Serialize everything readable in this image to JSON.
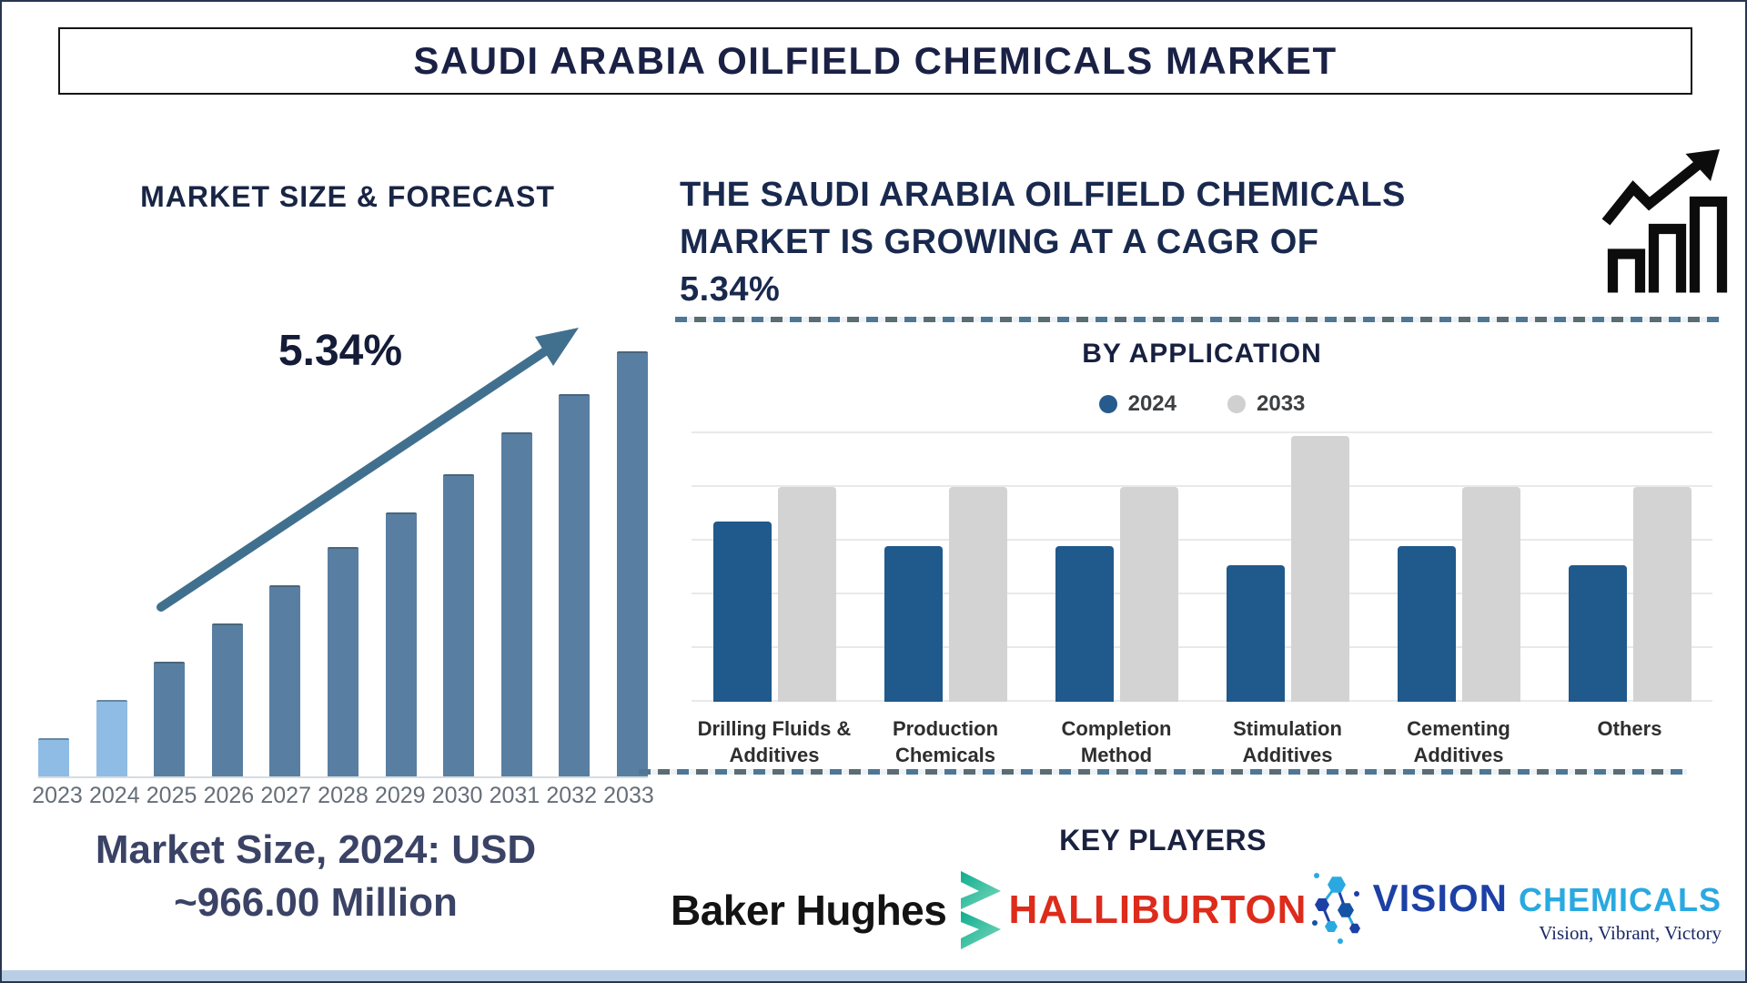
{
  "title": "SAUDI ARABIA OILFIELD CHEMICALS MARKET",
  "left": {
    "heading": "MARKET SIZE & FORECAST",
    "cagr_label": "5.34%",
    "market_size_line1": "Market Size, 2024: USD",
    "market_size_line2": "~966.00 Million"
  },
  "right": {
    "cagr_lines": [
      "THE SAUDI ARABIA OILFIELD CHEMICALS",
      "MARKET IS GROWING AT A CAGR OF",
      "5.34%"
    ],
    "by_application_heading": "BY APPLICATION",
    "legend": [
      {
        "label": "2024",
        "color": "#275b8e"
      },
      {
        "label": "2033",
        "color": "#d0d0d0"
      }
    ],
    "key_players_heading": "KEY PLAYERS",
    "players": {
      "baker_hughes": "Baker Hughes",
      "halliburton": "HALLIBURTON",
      "vision_word1": "VISION",
      "vision_word2": "CHEMICALS",
      "vision_tagline": "Vision, Vibrant, Victory"
    }
  },
  "colors": {
    "navy_text": "#1A2145",
    "forecast_bar_light": "#8FBCE4",
    "forecast_bar_dark": "#587FA2",
    "trend_arrow": "#41708F",
    "app_bar_2024": "#20598C",
    "app_bar_2033": "#D3D3D3",
    "halliburton_red": "#DD2B1C",
    "baker_hughes_black": "#131313",
    "baker_hughes_teal": "#0EAE8E",
    "vision_blue": "#1C40A5",
    "vision_cyan": "#2AA9E0",
    "vision_tagline_navy": "#1B2A66",
    "bottom_band_blue": "#B9CEE4"
  },
  "chart_data": [
    {
      "type": "bar",
      "title": "MARKET SIZE & FORECAST",
      "categories": [
        "2023",
        "2024",
        "2025",
        "2026",
        "2027",
        "2028",
        "2029",
        "2030",
        "2031",
        "2032",
        "2033"
      ],
      "values_relative_pct": [
        9,
        18,
        27,
        36,
        45,
        54,
        62,
        71,
        81,
        90,
        100
      ],
      "units_note": "relative bar height, % of tallest bar (no value axis shown)",
      "annotations": {
        "cagr": "5.34%",
        "market_size_2024": "USD ~966.00 Million"
      },
      "bar_color_2023_2024": "#8FBCE4",
      "bar_color_2025_2033": "#587FA2",
      "xlabel": "",
      "ylabel": "",
      "grid": false,
      "trend_arrow": true
    },
    {
      "type": "bar",
      "title": "BY APPLICATION",
      "categories": [
        "Drilling Fluids & Additives",
        "Production Chemicals",
        "Completion Method",
        "Stimulation Additives",
        "Cementing Additives",
        "Others"
      ],
      "series": [
        {
          "name": "2024",
          "color": "#20598C",
          "values_relative_pct": [
            67,
            58,
            58,
            51,
            58,
            51
          ]
        },
        {
          "name": "2033",
          "color": "#D3D3D3",
          "values_relative_pct": [
            80,
            80,
            80,
            99,
            80,
            80
          ]
        }
      ],
      "units_note": "relative bar height, % of plot height (no value axis shown)",
      "legend_position": "top-center",
      "grid": true
    }
  ]
}
